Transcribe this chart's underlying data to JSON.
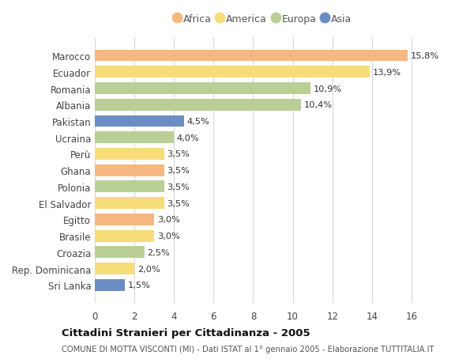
{
  "categories": [
    "Marocco",
    "Ecuador",
    "Romania",
    "Albania",
    "Pakistan",
    "Ucraina",
    "Perù",
    "Ghana",
    "Polonia",
    "El Salvador",
    "Egitto",
    "Brasile",
    "Croazia",
    "Rep. Dominicana",
    "Sri Lanka"
  ],
  "values": [
    15.8,
    13.9,
    10.9,
    10.4,
    4.5,
    4.0,
    3.5,
    3.5,
    3.5,
    3.5,
    3.0,
    3.0,
    2.5,
    2.0,
    1.5
  ],
  "labels": [
    "15,8%",
    "13,9%",
    "10,9%",
    "10,4%",
    "4,5%",
    "4,0%",
    "3,5%",
    "3,5%",
    "3,5%",
    "3,5%",
    "3,0%",
    "3,0%",
    "2,5%",
    "2,0%",
    "1,5%"
  ],
  "continents": [
    "Africa",
    "America",
    "Europa",
    "Europa",
    "Asia",
    "Europa",
    "America",
    "Africa",
    "Europa",
    "America",
    "Africa",
    "America",
    "Europa",
    "America",
    "Asia"
  ],
  "colors": {
    "Africa": "#F5B880",
    "America": "#F7DC7A",
    "Europa": "#BACF96",
    "Asia": "#6B8DC4"
  },
  "legend_order": [
    "Africa",
    "America",
    "Europa",
    "Asia"
  ],
  "title": "Cittadini Stranieri per Cittadinanza - 2005",
  "subtitle": "COMUNE DI MOTTA VISCONTI (MI) - Dati ISTAT al 1° gennaio 2005 - Elaborazione TUTTITALIA.IT",
  "xlim": [
    0,
    17
  ],
  "xticks": [
    0,
    2,
    4,
    6,
    8,
    10,
    12,
    14,
    16
  ],
  "background_color": "#ffffff",
  "grid_color": "#d8d8d8"
}
